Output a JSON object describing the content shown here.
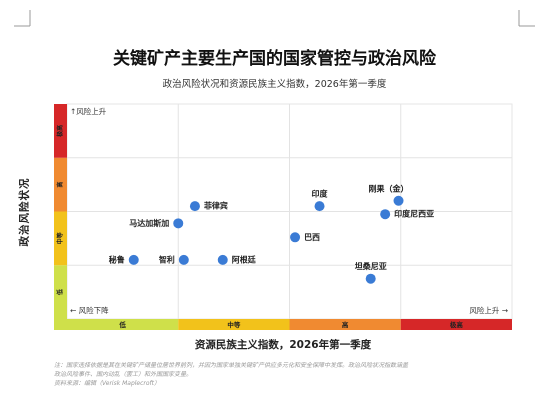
{
  "chart_data": {
    "type": "scatter",
    "title": "关键矿产主要生产国的国家管控与政治风险",
    "subtitle": "政治风险状况和资源民族主义指数，2026年第一季度",
    "xlabel": "资源民族主义指数，2026年第一季度",
    "ylabel": "政治风险状况",
    "xlim": [
      0,
      4
    ],
    "ylim": [
      0,
      4
    ],
    "x_bands": [
      {
        "label": "低",
        "color": "#cfe04a"
      },
      {
        "label": "中等",
        "color": "#f2c21b"
      },
      {
        "label": "高",
        "color": "#f08a31"
      },
      {
        "label": "极高",
        "color": "#d62728"
      }
    ],
    "y_bands": [
      {
        "label": "低",
        "color": "#cfe04a"
      },
      {
        "label": "中等",
        "color": "#f2c21b"
      },
      {
        "label": "高",
        "color": "#f08a31"
      },
      {
        "label": "极高",
        "color": "#d62728"
      }
    ],
    "arrow_up_label": "风险上升",
    "arrow_right_label": "风险上升",
    "arrow_left_label": "风险下降",
    "grid": true,
    "marker_color": "#3a7bd5",
    "points": [
      {
        "label": "菲律宾",
        "x": 1.15,
        "y": 2.1
      },
      {
        "label": "马达加斯加",
        "x": 1.0,
        "y": 1.78
      },
      {
        "label": "秘鲁",
        "x": 0.6,
        "y": 1.1
      },
      {
        "label": "智利",
        "x": 1.05,
        "y": 1.1
      },
      {
        "label": "阿根廷",
        "x": 1.4,
        "y": 1.1
      },
      {
        "label": "印度",
        "x": 2.27,
        "y": 2.1
      },
      {
        "label": "巴西",
        "x": 2.05,
        "y": 1.52
      },
      {
        "label": "刚果（金）",
        "x": 2.98,
        "y": 2.2
      },
      {
        "label": "印度尼西亚",
        "x": 2.86,
        "y": 1.95
      },
      {
        "label": "坦桑尼亚",
        "x": 2.73,
        "y": 0.75
      }
    ]
  },
  "notes": [
    "注：国家选择依据是其在关键矿产储量位居世界前列，并因为国家单独关键矿产供应多元化和安全保障中发挥。政治风险状况指数涵盖",
    "政治风险事件、国内动乱（罢工）和外国国家变量。",
    "资料来源：编辑（Verisk Maplecroft）"
  ]
}
